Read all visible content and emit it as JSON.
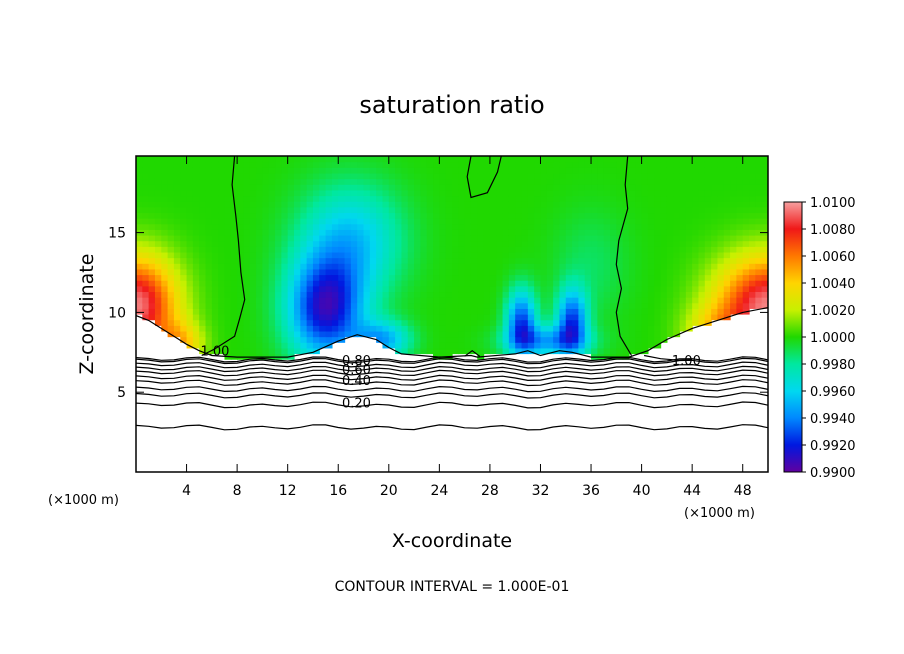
{
  "chart_data": {
    "type": "heatmap",
    "title": "saturation ratio",
    "xlabel": "X-coordinate",
    "ylabel": "Z-coordinate",
    "x_unit_label": "(×1000 m)",
    "xlim": [
      0,
      50
    ],
    "ylim": [
      0,
      19.8
    ],
    "x_ticks": [
      4,
      8,
      12,
      16,
      20,
      24,
      28,
      32,
      36,
      40,
      44,
      48
    ],
    "y_ticks": [
      5,
      10,
      15
    ],
    "colorbar": {
      "values": [
        1.01,
        1.008,
        1.006,
        1.004,
        1.002,
        1.0,
        0.998,
        0.996,
        0.994,
        0.992,
        0.99
      ],
      "labels": [
        "1.0100",
        "1.0080",
        "1.0060",
        "1.0040",
        "1.0020",
        "1.0000",
        "0.9980",
        "0.9960",
        "0.9940",
        "0.9920",
        "0.9900"
      ]
    },
    "contour_labels": [
      "1.00",
      "1.00",
      "0.80",
      "0.60",
      "0.40",
      "0.20"
    ],
    "footer": "CONTOUR INTERVAL = 1.000E-01",
    "fields": {
      "background_value": 1.0,
      "blobs": [
        {
          "x": 0,
          "z": 10.5,
          "sx": 3.2,
          "sz": 3.0,
          "v": 0.0095
        },
        {
          "x": 3.5,
          "z": 8.0,
          "sx": 1.8,
          "sz": 1.4,
          "v": 0.004
        },
        {
          "x": 50,
          "z": 10.5,
          "sx": 4.0,
          "sz": 3.0,
          "v": 0.0095
        },
        {
          "x": 46,
          "z": 8.5,
          "sx": 2.5,
          "sz": 1.8,
          "v": 0.0035
        },
        {
          "x": 15,
          "z": 10.2,
          "sx": 3.0,
          "sz": 3.2,
          "v": -0.0085
        },
        {
          "x": 17,
          "z": 14.5,
          "sx": 4.0,
          "sz": 3.5,
          "v": -0.0045
        },
        {
          "x": 19.5,
          "z": 8.3,
          "sx": 2.2,
          "sz": 1.2,
          "v": -0.005
        },
        {
          "x": 30.5,
          "z": 9.5,
          "sx": 1.2,
          "sz": 2.0,
          "v": -0.007
        },
        {
          "x": 34.5,
          "z": 9.5,
          "sx": 1.2,
          "sz": 2.0,
          "v": -0.007
        },
        {
          "x": 32.5,
          "z": 8.2,
          "sx": 3.2,
          "sz": 1.0,
          "v": -0.005
        },
        {
          "x": 36,
          "z": 13.0,
          "sx": 3.0,
          "sz": 3.5,
          "v": -0.0012
        }
      ]
    },
    "cloud_base_z": [
      [
        0,
        9.8
      ],
      [
        1,
        9.5
      ],
      [
        2,
        9.0
      ],
      [
        3,
        8.5
      ],
      [
        4,
        8.0
      ],
      [
        5,
        7.6
      ],
      [
        6,
        7.3
      ],
      [
        8,
        7.2
      ],
      [
        12,
        7.2
      ],
      [
        14,
        7.5
      ],
      [
        16,
        8.2
      ],
      [
        17.5,
        8.6
      ],
      [
        19,
        8.3
      ],
      [
        20,
        7.8
      ],
      [
        21,
        7.4
      ],
      [
        24,
        7.2
      ],
      [
        26.5,
        7.3
      ],
      [
        27,
        7.2
      ],
      [
        30,
        7.4
      ],
      [
        31,
        7.6
      ],
      [
        32,
        7.3
      ],
      [
        33.5,
        7.6
      ],
      [
        34.5,
        7.5
      ],
      [
        36,
        7.2
      ],
      [
        39,
        7.2
      ],
      [
        40.5,
        7.6
      ],
      [
        42,
        8.3
      ],
      [
        44,
        9.0
      ],
      [
        46,
        9.5
      ],
      [
        48,
        10.0
      ],
      [
        50,
        10.3
      ]
    ],
    "contour_levels_below": [
      {
        "level": "0.20",
        "z": 4.2
      },
      {
        "level": "0.40",
        "z": 5.6
      },
      {
        "level": "0.60",
        "z": 6.2
      },
      {
        "level": "0.80",
        "z": 6.7
      }
    ]
  }
}
